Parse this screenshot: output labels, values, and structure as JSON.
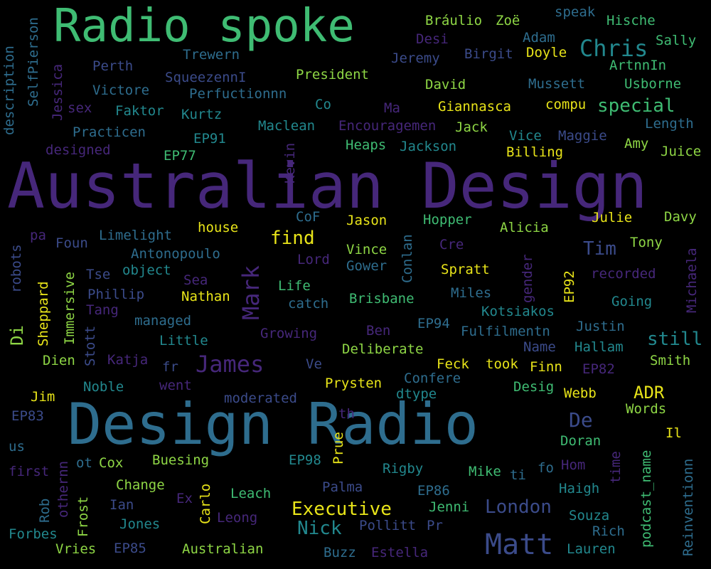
{
  "colors": {
    "background": "#000000",
    "purple": "#46277A",
    "indigo": "#3B4B8A",
    "blue": "#2E6D8E",
    "teal": "#22888E",
    "green": "#3FBC73",
    "lightgreen": "#8ED645",
    "yellow": "#E8E419"
  },
  "words": [
    "Radio spoke",
    "Australian Design",
    "Design Radio",
    "Matt",
    "James",
    "Chris",
    "Mark",
    "Executive",
    "London",
    "Nick",
    "special",
    "find",
    "Tim",
    "still",
    "De",
    "ADR",
    "Bráulio",
    "Zoë",
    "speak",
    "Hische",
    "Desi",
    "Adam",
    "Sally",
    "Trewern",
    "Jeremy",
    "Birgit",
    "Doyle",
    "Perth",
    "ArtnnIn",
    "SqueezennI",
    "President",
    "Victore",
    "David",
    "Mussett",
    "Usborne",
    "Perfuctionnn",
    "Co",
    "Ma",
    "Giannasca",
    "compu",
    "sex",
    "Faktor",
    "Kurtz",
    "Maclean",
    "Encouragemen",
    "Jack",
    "Vice",
    "Maggie",
    "Length",
    "Practicen",
    "EP91",
    "Heaps",
    "Jackson",
    "Amy",
    "designed",
    "EP77",
    "Billing",
    "Juice",
    "Kevin",
    "CoF",
    "Jason",
    "Hopper",
    "Julie",
    "Davy",
    "pa",
    "house",
    "Alicia",
    "Limelight",
    "Foun",
    "Conlan",
    "Cre",
    "Tony",
    "Antonopoulo",
    "Lord",
    "Vince",
    "Gower",
    "Spratt",
    "object",
    "Tse",
    "Sea",
    "Life",
    "recorded",
    "Phillip",
    "Nathan",
    "Brisbane",
    "Miles",
    "Going",
    "Tang",
    "catch",
    "Kotsiakos",
    "managed",
    "EP94",
    "Ben",
    "Justin",
    "Growing",
    "Fulfilmentn",
    "Little",
    "Deliberate",
    "Name",
    "Hallam",
    "Dien",
    "Katja",
    "Ve",
    "Feck",
    "took",
    "Finn",
    "Smith",
    "EP82",
    "fr",
    "Confere",
    "Desig",
    "Noble",
    "went",
    "Prysten",
    "Jim",
    "dtype",
    "Webb",
    "moderated",
    "Words",
    "EP83",
    "th",
    "Doran",
    "Il",
    "Prue",
    "us",
    "EP98",
    "Hom",
    "first",
    "ot",
    "Cox",
    "Buesing",
    "Rigby",
    "Mike",
    "fo",
    "ti",
    "Change",
    "Ex",
    "Leach",
    "Palma",
    "EP86",
    "Haigh",
    "Ian",
    "Jenni",
    "Souza",
    "Leong",
    "Jones",
    "Pollitt",
    "Pr",
    "Rich",
    "Forbes",
    "Vries",
    "EP85",
    "Australian",
    "Buzz",
    "Estella",
    "Lauren",
    "description",
    "SelfPierson",
    "Jessica",
    "robots",
    "Di",
    "Sheppard",
    "Immersive",
    "Stott",
    "gender",
    "EP92",
    "Michaela",
    "podcast_name",
    "time",
    "Reinventionn",
    "Rob",
    "othernn",
    "Frost",
    "Carlo"
  ]
}
